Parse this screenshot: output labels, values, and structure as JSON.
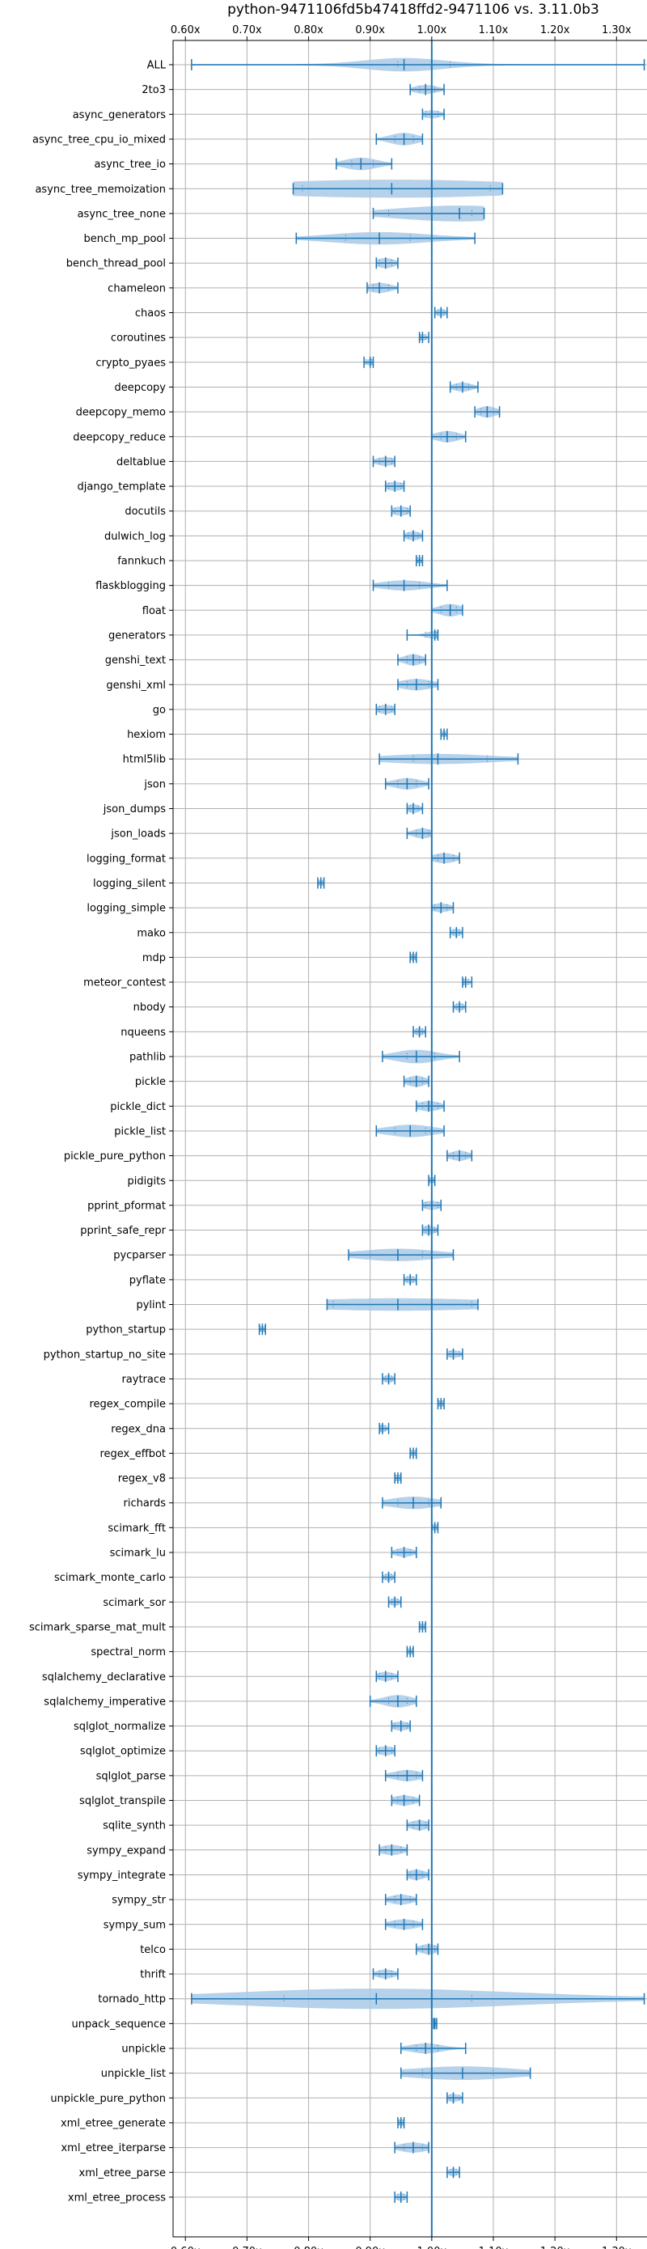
{
  "colors": {
    "violin": "#a9c9e6",
    "accent": "#1f77b4",
    "grid": "#b0b0b0"
  },
  "chart_data": {
    "type": "violin",
    "orientation": "horizontal",
    "title": "python-9471106fd5b47418ffd2-9471106 vs. 3.11.0b3",
    "xlim": [
      0.58,
      1.36
    ],
    "xticks": [
      0.6,
      0.7,
      0.8,
      0.9,
      1.0,
      1.1,
      1.2,
      1.3
    ],
    "xtick_labels": [
      "0.60x",
      "0.70x",
      "0.80x",
      "0.90x",
      "1.00x",
      "1.10x",
      "1.20x",
      "1.30x"
    ],
    "reference_line": 1.0,
    "grid": true,
    "categories": [
      {
        "name": "ALL",
        "median": 0.955,
        "min": 0.61,
        "max": 1.345,
        "q1": 0.945,
        "q3": 1.03,
        "width": 0.6
      },
      {
        "name": "2to3",
        "median": 0.99,
        "min": 0.965,
        "max": 1.02,
        "q1": 0.98,
        "q3": 1.005,
        "width": 0.4
      },
      {
        "name": "async_generators",
        "median": 1.0,
        "min": 0.985,
        "max": 1.02,
        "q1": 0.99,
        "q3": 1.01,
        "width": 0.35
      },
      {
        "name": "async_tree_cpu_io_mixed",
        "median": 0.955,
        "min": 0.91,
        "max": 0.985,
        "q1": 0.94,
        "q3": 0.97,
        "width": 0.55
      },
      {
        "name": "async_tree_io",
        "median": 0.885,
        "min": 0.845,
        "max": 0.935,
        "q1": 0.87,
        "q3": 0.905,
        "width": 0.55
      },
      {
        "name": "async_tree_memoization",
        "median": 0.935,
        "min": 0.775,
        "max": 1.115,
        "q1": 0.79,
        "q3": 1.095,
        "width": 0.8
      },
      {
        "name": "async_tree_none",
        "median": 1.045,
        "min": 0.905,
        "max": 1.085,
        "q1": 0.93,
        "q3": 1.065,
        "width": 0.7
      },
      {
        "name": "bench_mp_pool",
        "median": 0.915,
        "min": 0.78,
        "max": 1.07,
        "q1": 0.86,
        "q3": 0.965,
        "width": 0.55
      },
      {
        "name": "bench_thread_pool",
        "median": 0.925,
        "min": 0.91,
        "max": 0.945,
        "q1": 0.915,
        "q3": 0.935,
        "width": 0.45
      },
      {
        "name": "chameleon",
        "median": 0.915,
        "min": 0.895,
        "max": 0.945,
        "q1": 0.905,
        "q3": 0.93,
        "width": 0.45
      },
      {
        "name": "chaos",
        "median": 1.015,
        "min": 1.005,
        "max": 1.025,
        "q1": 1.01,
        "q3": 1.02,
        "width": 0.35
      },
      {
        "name": "coroutines",
        "median": 0.985,
        "min": 0.98,
        "max": 0.995,
        "q1": 0.982,
        "q3": 0.99,
        "width": 0.3
      },
      {
        "name": "crypto_pyaes",
        "median": 0.9,
        "min": 0.89,
        "max": 0.905,
        "q1": 0.893,
        "q3": 0.902,
        "width": 0.3
      },
      {
        "name": "deepcopy",
        "median": 1.05,
        "min": 1.03,
        "max": 1.075,
        "q1": 1.04,
        "q3": 1.06,
        "width": 0.4
      },
      {
        "name": "deepcopy_memo",
        "median": 1.09,
        "min": 1.07,
        "max": 1.11,
        "q1": 1.08,
        "q3": 1.1,
        "width": 0.5
      },
      {
        "name": "deepcopy_reduce",
        "median": 1.025,
        "min": 1.0,
        "max": 1.055,
        "q1": 1.015,
        "q3": 1.04,
        "width": 0.5
      },
      {
        "name": "deltablue",
        "median": 0.925,
        "min": 0.905,
        "max": 0.94,
        "q1": 0.915,
        "q3": 0.935,
        "width": 0.4
      },
      {
        "name": "django_template",
        "median": 0.94,
        "min": 0.925,
        "max": 0.955,
        "q1": 0.93,
        "q3": 0.95,
        "width": 0.4
      },
      {
        "name": "docutils",
        "median": 0.95,
        "min": 0.935,
        "max": 0.965,
        "q1": 0.94,
        "q3": 0.96,
        "width": 0.4
      },
      {
        "name": "dulwich_log",
        "median": 0.97,
        "min": 0.955,
        "max": 0.985,
        "q1": 0.962,
        "q3": 0.978,
        "width": 0.4
      },
      {
        "name": "fannkuch",
        "median": 0.98,
        "min": 0.975,
        "max": 0.985,
        "q1": 0.977,
        "q3": 0.983,
        "width": 0.25
      },
      {
        "name": "flaskblogging",
        "median": 0.955,
        "min": 0.905,
        "max": 1.025,
        "q1": 0.93,
        "q3": 0.98,
        "width": 0.45
      },
      {
        "name": "float",
        "median": 1.03,
        "min": 1.0,
        "max": 1.05,
        "q1": 1.015,
        "q3": 1.04,
        "width": 0.55
      },
      {
        "name": "generators",
        "median": 1.005,
        "min": 0.96,
        "max": 1.01,
        "q1": 0.99,
        "q3": 1.008,
        "width": 0.35
      },
      {
        "name": "genshi_text",
        "median": 0.97,
        "min": 0.945,
        "max": 0.99,
        "q1": 0.96,
        "q3": 0.98,
        "width": 0.5
      },
      {
        "name": "genshi_xml",
        "median": 0.975,
        "min": 0.945,
        "max": 1.01,
        "q1": 0.96,
        "q3": 0.995,
        "width": 0.5
      },
      {
        "name": "go",
        "median": 0.925,
        "min": 0.91,
        "max": 0.94,
        "q1": 0.915,
        "q3": 0.935,
        "width": 0.4
      },
      {
        "name": "hexiom",
        "median": 1.02,
        "min": 1.015,
        "max": 1.025,
        "q1": 1.017,
        "q3": 1.022,
        "width": 0.25
      },
      {
        "name": "html5lib",
        "median": 1.01,
        "min": 0.915,
        "max": 1.14,
        "q1": 0.97,
        "q3": 1.09,
        "width": 0.45
      },
      {
        "name": "json",
        "median": 0.96,
        "min": 0.925,
        "max": 0.995,
        "q1": 0.945,
        "q3": 0.975,
        "width": 0.5
      },
      {
        "name": "json_dumps",
        "median": 0.97,
        "min": 0.96,
        "max": 0.985,
        "q1": 0.965,
        "q3": 0.978,
        "width": 0.4
      },
      {
        "name": "json_loads",
        "median": 0.985,
        "min": 0.96,
        "max": 1.0,
        "q1": 0.975,
        "q3": 0.995,
        "width": 0.45
      },
      {
        "name": "logging_format",
        "median": 1.02,
        "min": 1.0,
        "max": 1.045,
        "q1": 1.01,
        "q3": 1.035,
        "width": 0.45
      },
      {
        "name": "logging_silent",
        "median": 0.82,
        "min": 0.815,
        "max": 0.825,
        "q1": 0.817,
        "q3": 0.823,
        "width": 0.25
      },
      {
        "name": "logging_simple",
        "median": 1.015,
        "min": 1.0,
        "max": 1.035,
        "q1": 1.005,
        "q3": 1.025,
        "width": 0.4
      },
      {
        "name": "mako",
        "median": 1.04,
        "min": 1.03,
        "max": 1.05,
        "q1": 1.035,
        "q3": 1.045,
        "width": 0.35
      },
      {
        "name": "mdp",
        "median": 0.97,
        "min": 0.965,
        "max": 0.975,
        "q1": 0.967,
        "q3": 0.973,
        "width": 0.3
      },
      {
        "name": "meteor_contest",
        "median": 1.055,
        "min": 1.05,
        "max": 1.065,
        "q1": 1.052,
        "q3": 1.06,
        "width": 0.3
      },
      {
        "name": "nbody",
        "median": 1.045,
        "min": 1.035,
        "max": 1.055,
        "q1": 1.04,
        "q3": 1.05,
        "width": 0.35
      },
      {
        "name": "nqueens",
        "median": 0.98,
        "min": 0.97,
        "max": 0.99,
        "q1": 0.975,
        "q3": 0.985,
        "width": 0.35
      },
      {
        "name": "pathlib",
        "median": 0.975,
        "min": 0.92,
        "max": 1.045,
        "q1": 0.96,
        "q3": 1.005,
        "width": 0.6
      },
      {
        "name": "pickle",
        "median": 0.975,
        "min": 0.955,
        "max": 0.995,
        "q1": 0.965,
        "q3": 0.985,
        "width": 0.5
      },
      {
        "name": "pickle_dict",
        "median": 0.995,
        "min": 0.975,
        "max": 1.02,
        "q1": 0.985,
        "q3": 1.01,
        "width": 0.45
      },
      {
        "name": "pickle_list",
        "median": 0.965,
        "min": 0.91,
        "max": 1.02,
        "q1": 0.94,
        "q3": 0.99,
        "width": 0.55
      },
      {
        "name": "pickle_pure_python",
        "median": 1.045,
        "min": 1.025,
        "max": 1.065,
        "q1": 1.035,
        "q3": 1.055,
        "width": 0.45
      },
      {
        "name": "pidigits",
        "median": 1.0,
        "min": 0.995,
        "max": 1.005,
        "q1": 0.997,
        "q3": 1.003,
        "width": 0.25
      },
      {
        "name": "pprint_pformat",
        "median": 1.0,
        "min": 0.985,
        "max": 1.015,
        "q1": 0.99,
        "q3": 1.01,
        "width": 0.4
      },
      {
        "name": "pprint_safe_repr",
        "median": 0.995,
        "min": 0.985,
        "max": 1.01,
        "q1": 0.99,
        "q3": 1.005,
        "width": 0.4
      },
      {
        "name": "pycparser",
        "median": 0.945,
        "min": 0.865,
        "max": 1.035,
        "q1": 0.9,
        "q3": 0.985,
        "width": 0.55
      },
      {
        "name": "pyflate",
        "median": 0.965,
        "min": 0.955,
        "max": 0.975,
        "q1": 0.96,
        "q3": 0.97,
        "width": 0.35
      },
      {
        "name": "pylint",
        "median": 0.945,
        "min": 0.83,
        "max": 1.075,
        "q1": 0.84,
        "q3": 1.065,
        "width": 0.55
      },
      {
        "name": "python_startup",
        "median": 0.725,
        "min": 0.72,
        "max": 0.73,
        "q1": 0.722,
        "q3": 0.728,
        "width": 0.25
      },
      {
        "name": "python_startup_no_site",
        "median": 1.035,
        "min": 1.025,
        "max": 1.05,
        "q1": 1.03,
        "q3": 1.045,
        "width": 0.35
      },
      {
        "name": "raytrace",
        "median": 0.93,
        "min": 0.92,
        "max": 0.94,
        "q1": 0.925,
        "q3": 0.935,
        "width": 0.35
      },
      {
        "name": "regex_compile",
        "median": 1.015,
        "min": 1.01,
        "max": 1.02,
        "q1": 1.012,
        "q3": 1.018,
        "width": 0.3
      },
      {
        "name": "regex_dna",
        "median": 0.92,
        "min": 0.915,
        "max": 0.93,
        "q1": 0.917,
        "q3": 0.925,
        "width": 0.35
      },
      {
        "name": "regex_effbot",
        "median": 0.97,
        "min": 0.965,
        "max": 0.975,
        "q1": 0.967,
        "q3": 0.973,
        "width": 0.25
      },
      {
        "name": "regex_v8",
        "median": 0.945,
        "min": 0.94,
        "max": 0.95,
        "q1": 0.942,
        "q3": 0.948,
        "width": 0.3
      },
      {
        "name": "richards",
        "median": 0.97,
        "min": 0.92,
        "max": 1.015,
        "q1": 0.945,
        "q3": 0.995,
        "width": 0.55
      },
      {
        "name": "scimark_fft",
        "median": 1.005,
        "min": 1.0,
        "max": 1.01,
        "q1": 1.002,
        "q3": 1.008,
        "width": 0.25
      },
      {
        "name": "scimark_lu",
        "median": 0.955,
        "min": 0.935,
        "max": 0.975,
        "q1": 0.945,
        "q3": 0.965,
        "width": 0.4
      },
      {
        "name": "scimark_monte_carlo",
        "median": 0.93,
        "min": 0.92,
        "max": 0.94,
        "q1": 0.925,
        "q3": 0.935,
        "width": 0.35
      },
      {
        "name": "scimark_sor",
        "median": 0.94,
        "min": 0.93,
        "max": 0.95,
        "q1": 0.935,
        "q3": 0.945,
        "width": 0.35
      },
      {
        "name": "scimark_sparse_mat_mult",
        "median": 0.985,
        "min": 0.98,
        "max": 0.99,
        "q1": 0.982,
        "q3": 0.988,
        "width": 0.25
      },
      {
        "name": "spectral_norm",
        "median": 0.965,
        "min": 0.96,
        "max": 0.97,
        "q1": 0.962,
        "q3": 0.968,
        "width": 0.25
      },
      {
        "name": "sqlalchemy_declarative",
        "median": 0.925,
        "min": 0.91,
        "max": 0.945,
        "q1": 0.915,
        "q3": 0.935,
        "width": 0.4
      },
      {
        "name": "sqlalchemy_imperative",
        "median": 0.945,
        "min": 0.9,
        "max": 0.975,
        "q1": 0.93,
        "q3": 0.96,
        "width": 0.55
      },
      {
        "name": "sqlglot_normalize",
        "median": 0.95,
        "min": 0.935,
        "max": 0.965,
        "q1": 0.94,
        "q3": 0.96,
        "width": 0.4
      },
      {
        "name": "sqlglot_optimize",
        "median": 0.925,
        "min": 0.91,
        "max": 0.94,
        "q1": 0.915,
        "q3": 0.935,
        "width": 0.4
      },
      {
        "name": "sqlglot_parse",
        "median": 0.96,
        "min": 0.925,
        "max": 0.985,
        "q1": 0.945,
        "q3": 0.975,
        "width": 0.5
      },
      {
        "name": "sqlglot_transpile",
        "median": 0.955,
        "min": 0.935,
        "max": 0.98,
        "q1": 0.945,
        "q3": 0.97,
        "width": 0.45
      },
      {
        "name": "sqlite_synth",
        "median": 0.98,
        "min": 0.96,
        "max": 0.995,
        "q1": 0.97,
        "q3": 0.99,
        "width": 0.45
      },
      {
        "name": "sympy_expand",
        "median": 0.935,
        "min": 0.915,
        "max": 0.96,
        "q1": 0.925,
        "q3": 0.95,
        "width": 0.45
      },
      {
        "name": "sympy_integrate",
        "median": 0.975,
        "min": 0.96,
        "max": 0.995,
        "q1": 0.965,
        "q3": 0.985,
        "width": 0.45
      },
      {
        "name": "sympy_str",
        "median": 0.95,
        "min": 0.925,
        "max": 0.975,
        "q1": 0.94,
        "q3": 0.965,
        "width": 0.45
      },
      {
        "name": "sympy_sum",
        "median": 0.955,
        "min": 0.925,
        "max": 0.985,
        "q1": 0.94,
        "q3": 0.97,
        "width": 0.45
      },
      {
        "name": "telco",
        "median": 0.995,
        "min": 0.975,
        "max": 1.01,
        "q1": 0.985,
        "q3": 1.005,
        "width": 0.45
      },
      {
        "name": "thrift",
        "median": 0.925,
        "min": 0.905,
        "max": 0.945,
        "q1": 0.915,
        "q3": 0.935,
        "width": 0.4
      },
      {
        "name": "tornado_http",
        "median": 0.91,
        "min": 0.61,
        "max": 1.345,
        "q1": 0.76,
        "q3": 1.065,
        "width": 0.9
      },
      {
        "name": "unpack_sequence",
        "median": 1.005,
        "min": 1.003,
        "max": 1.008,
        "q1": 1.004,
        "q3": 1.007,
        "width": 0.2
      },
      {
        "name": "unpickle",
        "median": 0.99,
        "min": 0.95,
        "max": 1.055,
        "q1": 0.975,
        "q3": 1.01,
        "width": 0.45
      },
      {
        "name": "unpickle_list",
        "median": 1.05,
        "min": 0.95,
        "max": 1.16,
        "q1": 0.985,
        "q3": 1.1,
        "width": 0.6
      },
      {
        "name": "unpickle_pure_python",
        "median": 1.035,
        "min": 1.025,
        "max": 1.05,
        "q1": 1.03,
        "q3": 1.045,
        "width": 0.35
      },
      {
        "name": "xml_etree_generate",
        "median": 0.95,
        "min": 0.945,
        "max": 0.955,
        "q1": 0.947,
        "q3": 0.953,
        "width": 0.3
      },
      {
        "name": "xml_etree_iterparse",
        "median": 0.97,
        "min": 0.94,
        "max": 0.995,
        "q1": 0.955,
        "q3": 0.985,
        "width": 0.45
      },
      {
        "name": "xml_etree_parse",
        "median": 1.035,
        "min": 1.025,
        "max": 1.045,
        "q1": 1.03,
        "q3": 1.04,
        "width": 0.35
      },
      {
        "name": "xml_etree_process",
        "median": 0.95,
        "min": 0.94,
        "max": 0.96,
        "q1": 0.945,
        "q3": 0.955,
        "width": 0.35
      }
    ]
  }
}
